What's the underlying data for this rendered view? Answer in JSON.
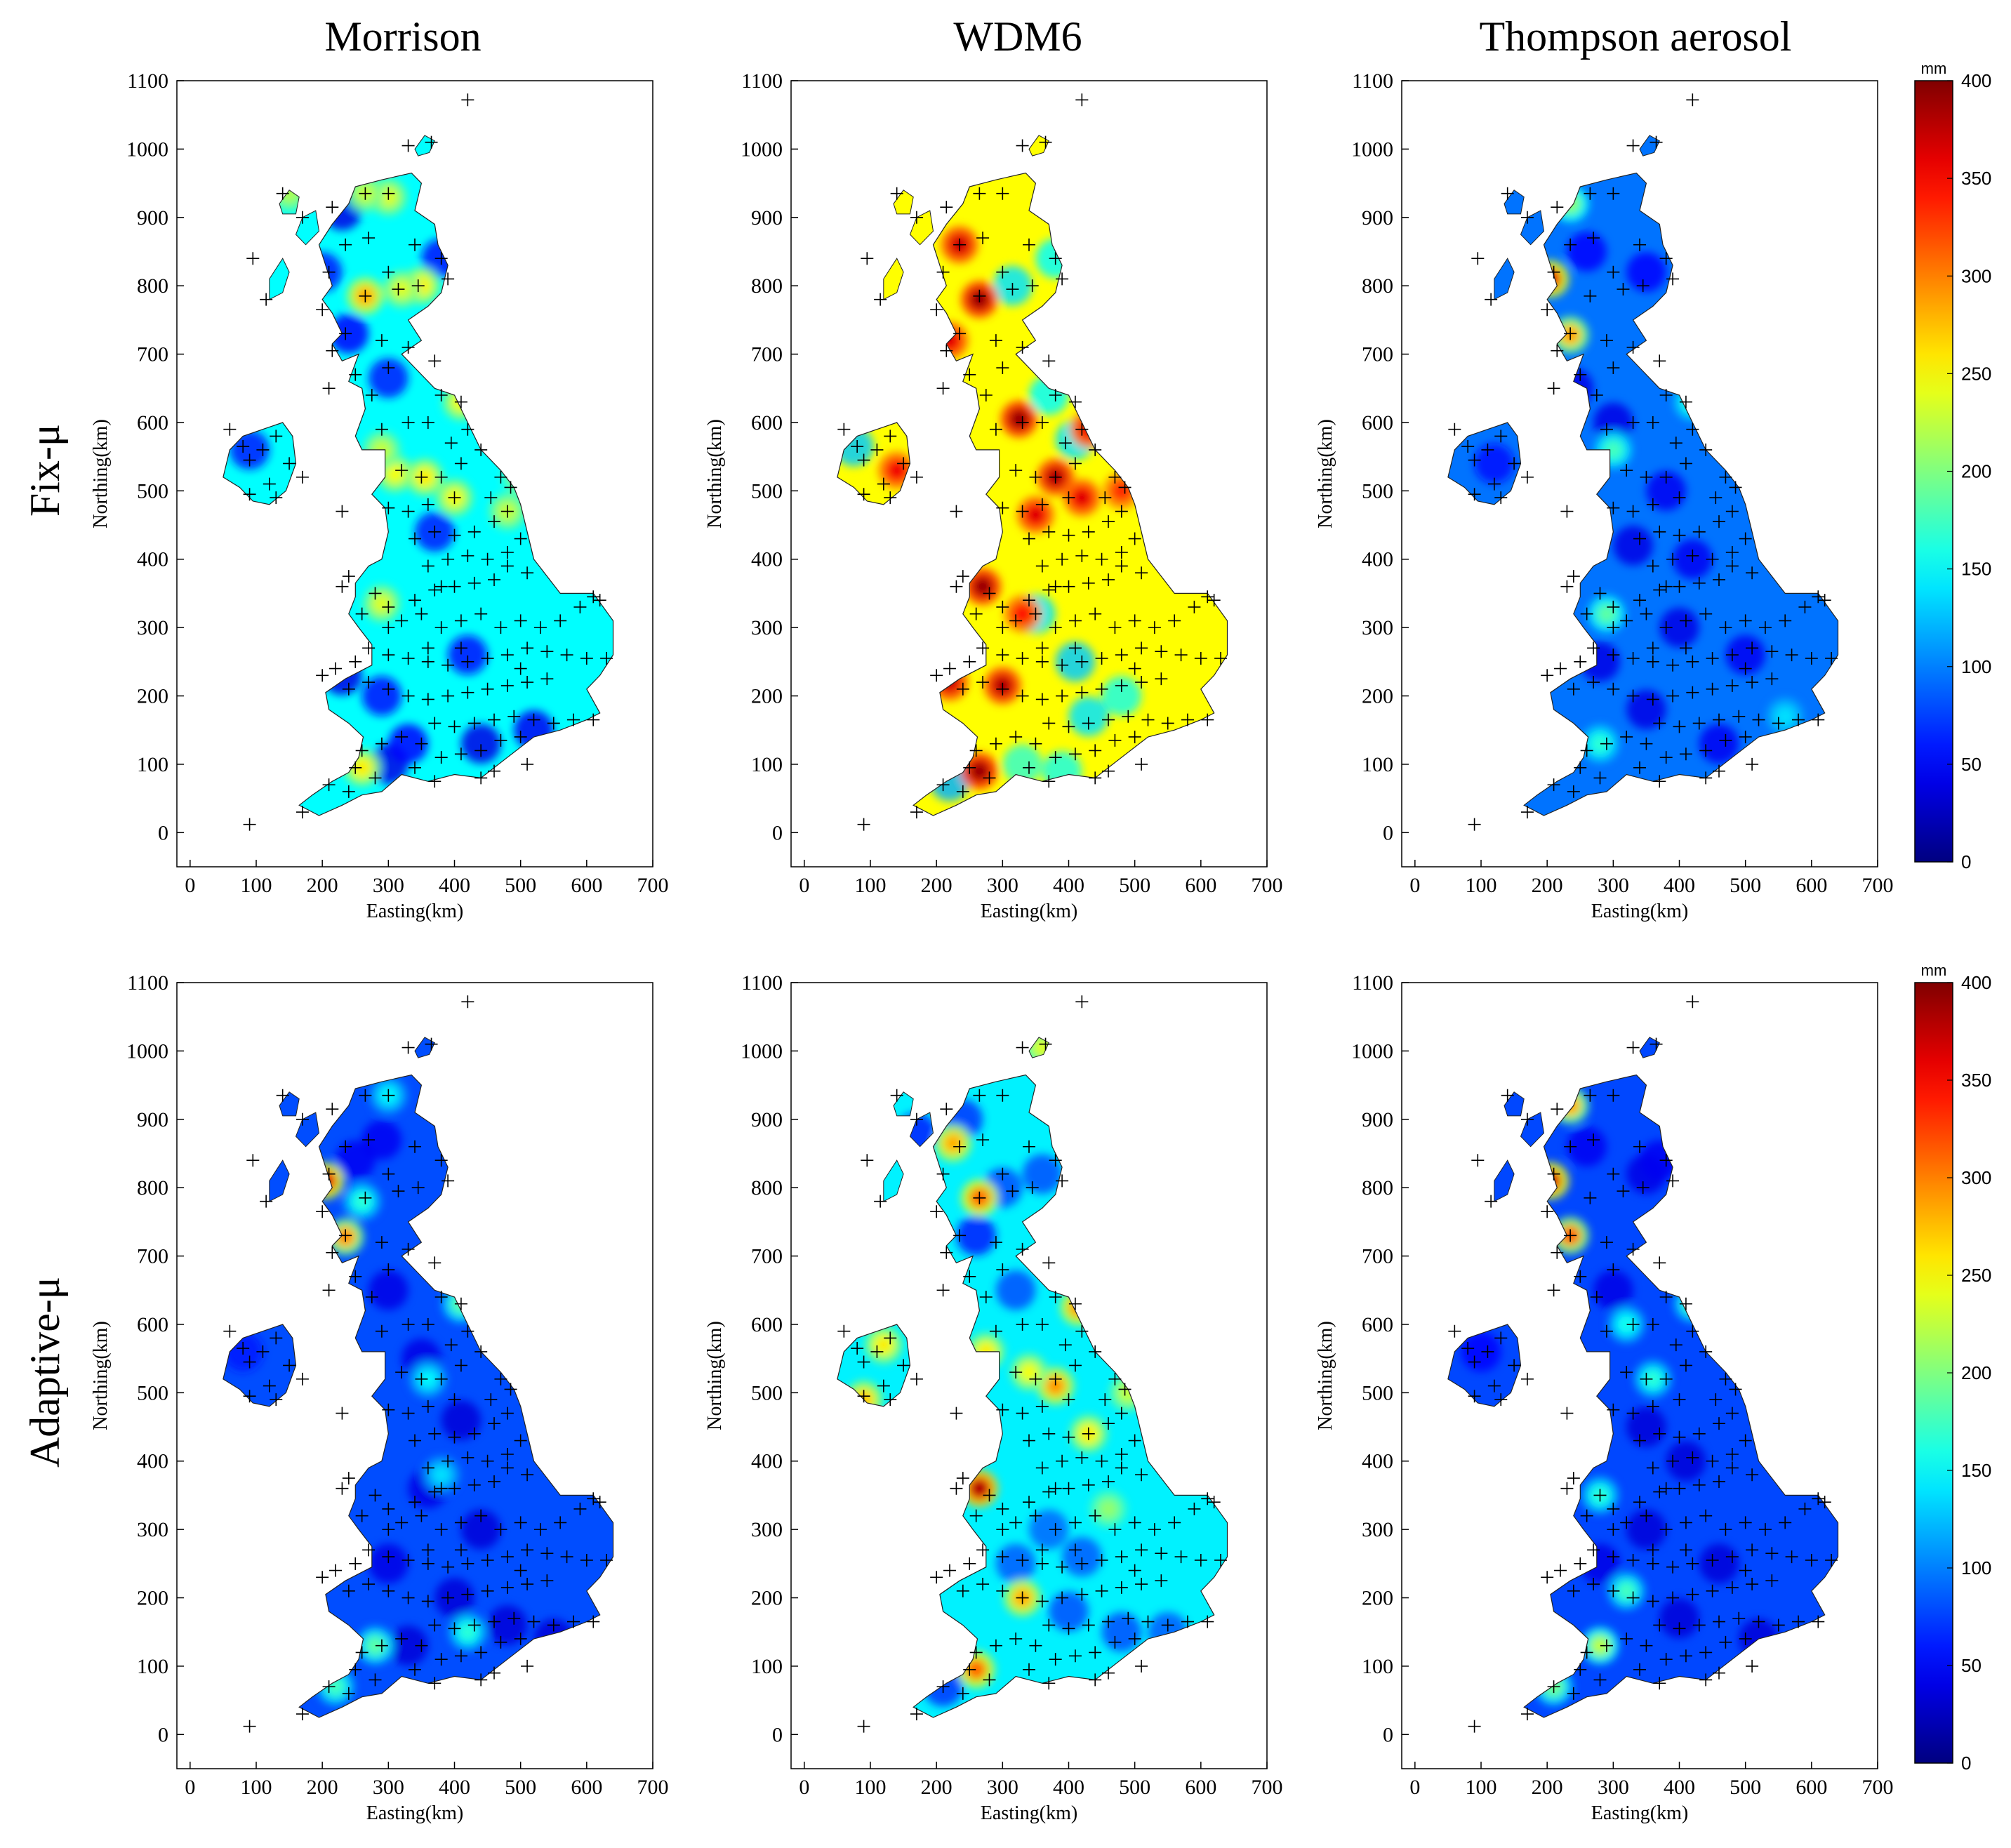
{
  "figure": {
    "column_titles": [
      "Morrison",
      "WDM6",
      "Thompson aerosol"
    ],
    "row_titles": [
      "Fix-μ",
      "Adaptive-μ"
    ]
  },
  "axes": {
    "xlabel": "Easting(km)",
    "ylabel": "Northing(km)",
    "x_ticks": [
      0,
      100,
      200,
      300,
      400,
      500,
      600,
      700
    ],
    "y_ticks": [
      0,
      100,
      200,
      300,
      400,
      500,
      600,
      700,
      800,
      900,
      1000,
      1100
    ],
    "xlim": [
      -20,
      700
    ],
    "ylim": [
      -50,
      1100
    ]
  },
  "colorbar": {
    "unit": "mm",
    "ticks": [
      0,
      50,
      100,
      150,
      200,
      250,
      300,
      350,
      400
    ],
    "range": [
      0,
      400
    ],
    "colormap": "jet",
    "colors": [
      "#00008f",
      "#0000ff",
      "#007fff",
      "#00ffff",
      "#7fff7f",
      "#ffff00",
      "#ff7f00",
      "#ff0000",
      "#7f0000"
    ]
  },
  "stations": [
    [
      90,
      12
    ],
    [
      420,
      1072
    ],
    [
      365,
      1010
    ],
    [
      330,
      1005
    ],
    [
      300,
      935
    ],
    [
      265,
      935
    ],
    [
      215,
      915
    ],
    [
      170,
      900
    ],
    [
      140,
      935
    ],
    [
      95,
      840
    ],
    [
      115,
      780
    ],
    [
      340,
      860
    ],
    [
      270,
      870
    ],
    [
      235,
      860
    ],
    [
      210,
      820
    ],
    [
      300,
      820
    ],
    [
      380,
      840
    ],
    [
      390,
      810
    ],
    [
      345,
      800
    ],
    [
      315,
      795
    ],
    [
      265,
      785
    ],
    [
      235,
      730
    ],
    [
      200,
      765
    ],
    [
      215,
      705
    ],
    [
      290,
      720
    ],
    [
      330,
      710
    ],
    [
      370,
      690
    ],
    [
      300,
      680
    ],
    [
      250,
      670
    ],
    [
      275,
      640
    ],
    [
      210,
      650
    ],
    [
      380,
      640
    ],
    [
      410,
      630
    ],
    [
      330,
      600
    ],
    [
      290,
      590
    ],
    [
      360,
      600
    ],
    [
      395,
      570
    ],
    [
      420,
      590
    ],
    [
      440,
      560
    ],
    [
      410,
      540
    ],
    [
      380,
      520
    ],
    [
      350,
      520
    ],
    [
      320,
      530
    ],
    [
      470,
      520
    ],
    [
      485,
      505
    ],
    [
      455,
      490
    ],
    [
      400,
      490
    ],
    [
      360,
      480
    ],
    [
      330,
      470
    ],
    [
      300,
      475
    ],
    [
      480,
      470
    ],
    [
      460,
      455
    ],
    [
      430,
      440
    ],
    [
      400,
      435
    ],
    [
      370,
      440
    ],
    [
      340,
      430
    ],
    [
      500,
      430
    ],
    [
      480,
      410
    ],
    [
      450,
      400
    ],
    [
      420,
      405
    ],
    [
      390,
      400
    ],
    [
      360,
      390
    ],
    [
      480,
      390
    ],
    [
      510,
      380
    ],
    [
      460,
      370
    ],
    [
      430,
      365
    ],
    [
      400,
      360
    ],
    [
      370,
      355
    ],
    [
      340,
      340
    ],
    [
      300,
      330
    ],
    [
      280,
      350
    ],
    [
      240,
      375
    ],
    [
      230,
      360
    ],
    [
      260,
      320
    ],
    [
      300,
      300
    ],
    [
      320,
      310
    ],
    [
      350,
      320
    ],
    [
      380,
      300
    ],
    [
      410,
      310
    ],
    [
      440,
      320
    ],
    [
      470,
      300
    ],
    [
      500,
      310
    ],
    [
      530,
      300
    ],
    [
      560,
      310
    ],
    [
      590,
      330
    ],
    [
      610,
      345
    ],
    [
      620,
      340
    ],
    [
      570,
      260
    ],
    [
      540,
      265
    ],
    [
      510,
      270
    ],
    [
      480,
      260
    ],
    [
      450,
      255
    ],
    [
      420,
      250
    ],
    [
      390,
      245
    ],
    [
      360,
      250
    ],
    [
      330,
      255
    ],
    [
      300,
      260
    ],
    [
      270,
      270
    ],
    [
      250,
      250
    ],
    [
      220,
      240
    ],
    [
      200,
      230
    ],
    [
      240,
      210
    ],
    [
      270,
      220
    ],
    [
      300,
      210
    ],
    [
      330,
      200
    ],
    [
      360,
      195
    ],
    [
      390,
      200
    ],
    [
      420,
      205
    ],
    [
      450,
      210
    ],
    [
      480,
      215
    ],
    [
      510,
      220
    ],
    [
      540,
      225
    ],
    [
      600,
      255
    ],
    [
      630,
      255
    ],
    [
      370,
      160
    ],
    [
      400,
      155
    ],
    [
      430,
      160
    ],
    [
      460,
      165
    ],
    [
      490,
      170
    ],
    [
      520,
      165
    ],
    [
      550,
      160
    ],
    [
      580,
      165
    ],
    [
      610,
      165
    ],
    [
      500,
      140
    ],
    [
      470,
      135
    ],
    [
      440,
      120
    ],
    [
      410,
      115
    ],
    [
      380,
      110
    ],
    [
      350,
      130
    ],
    [
      320,
      140
    ],
    [
      290,
      130
    ],
    [
      260,
      120
    ],
    [
      250,
      95
    ],
    [
      280,
      80
    ],
    [
      340,
      95
    ],
    [
      440,
      80
    ],
    [
      460,
      90
    ],
    [
      510,
      100
    ],
    [
      370,
      75
    ],
    [
      210,
      70
    ],
    [
      240,
      60
    ],
    [
      170,
      30
    ],
    [
      60,
      590
    ],
    [
      80,
      565
    ],
    [
      90,
      545
    ],
    [
      110,
      560
    ],
    [
      130,
      580
    ],
    [
      120,
      510
    ],
    [
      90,
      495
    ],
    [
      130,
      490
    ],
    [
      150,
      540
    ],
    [
      170,
      520
    ],
    [
      230,
      470
    ],
    [
      380,
      360
    ],
    [
      500,
      240
    ],
    [
      410,
      270
    ],
    [
      360,
      270
    ]
  ],
  "panels": [
    {
      "name": "Morrison / Fix-μ",
      "base": 150,
      "hot": [
        [
          265,
          785,
          290
        ],
        [
          300,
          930,
          240
        ],
        [
          265,
          935,
          230
        ],
        [
          350,
          800,
          260
        ],
        [
          320,
          795,
          240
        ],
        [
          410,
          630,
          250
        ],
        [
          355,
          520,
          260
        ],
        [
          310,
          525,
          250
        ],
        [
          400,
          490,
          250
        ],
        [
          480,
          470,
          230
        ],
        [
          290,
          335,
          240
        ],
        [
          260,
          95,
          260
        ],
        [
          150,
          935,
          220
        ],
        [
          290,
          560,
          230
        ],
        [
          500,
          520,
          210
        ]
      ],
      "cold": [
        [
          240,
          730,
          50
        ],
        [
          230,
          910,
          40
        ],
        [
          300,
          665,
          60
        ],
        [
          230,
          230,
          40
        ],
        [
          300,
          100,
          40
        ],
        [
          370,
          440,
          60
        ],
        [
          420,
          260,
          55
        ],
        [
          440,
          130,
          40
        ],
        [
          520,
          150,
          45
        ],
        [
          330,
          130,
          50
        ],
        [
          90,
          560,
          60
        ],
        [
          200,
          820,
          60
        ],
        [
          380,
          840,
          55
        ],
        [
          290,
          200,
          55
        ],
        [
          560,
          110,
          50
        ]
      ]
    },
    {
      "name": "WDM6 / Fix-μ",
      "base": 250,
      "hot": [
        [
          265,
          780,
          400
        ],
        [
          235,
          860,
          380
        ],
        [
          325,
          605,
          400
        ],
        [
          380,
          520,
          390
        ],
        [
          270,
          360,
          400
        ],
        [
          300,
          215,
          390
        ],
        [
          265,
          90,
          400
        ],
        [
          420,
          490,
          370
        ],
        [
          430,
          590,
          360
        ],
        [
          220,
          720,
          370
        ],
        [
          140,
          530,
          360
        ],
        [
          350,
          465,
          370
        ],
        [
          480,
          500,
          340
        ],
        [
          220,
          220,
          380
        ],
        [
          330,
          320,
          350
        ]
      ],
      "cold": [
        [
          75,
          565,
          130
        ],
        [
          315,
          800,
          140
        ],
        [
          380,
          840,
          150
        ],
        [
          410,
          575,
          140
        ],
        [
          370,
          640,
          150
        ],
        [
          350,
          320,
          140
        ],
        [
          410,
          250,
          130
        ],
        [
          430,
          170,
          140
        ],
        [
          390,
          90,
          160
        ],
        [
          330,
          100,
          170
        ],
        [
          220,
          75,
          120
        ],
        [
          480,
          200,
          160
        ],
        [
          240,
          420,
          160
        ]
      ]
    },
    {
      "name": "Thompson aerosol / Fix-μ",
      "base": 95,
      "hot": [
        [
          205,
          810,
          380
        ],
        [
          235,
          728,
          300
        ],
        [
          235,
          920,
          210
        ],
        [
          290,
          320,
          190
        ],
        [
          420,
          630,
          170
        ],
        [
          300,
          560,
          180
        ],
        [
          560,
          170,
          140
        ],
        [
          280,
          130,
          170
        ]
      ],
      "cold": [
        [
          240,
          650,
          40
        ],
        [
          300,
          600,
          40
        ],
        [
          380,
          500,
          45
        ],
        [
          330,
          420,
          40
        ],
        [
          420,
          400,
          45
        ],
        [
          280,
          250,
          40
        ],
        [
          350,
          180,
          40
        ],
        [
          460,
          130,
          45
        ],
        [
          400,
          300,
          40
        ],
        [
          500,
          260,
          45
        ],
        [
          120,
          540,
          55
        ],
        [
          260,
          850,
          50
        ],
        [
          350,
          820,
          50
        ]
      ]
    },
    {
      "name": "Morrison / Adaptive-μ",
      "base": 80,
      "hot": [
        [
          205,
          810,
          390
        ],
        [
          235,
          728,
          310
        ],
        [
          410,
          630,
          190
        ],
        [
          260,
          780,
          170
        ],
        [
          420,
          150,
          170
        ],
        [
          280,
          130,
          190
        ],
        [
          220,
          70,
          180
        ],
        [
          380,
          380,
          140
        ],
        [
          360,
          520,
          150
        ],
        [
          300,
          935,
          150
        ]
      ],
      "cold": [
        [
          300,
          650,
          40
        ],
        [
          350,
          550,
          40
        ],
        [
          410,
          460,
          35
        ],
        [
          360,
          360,
          40
        ],
        [
          440,
          300,
          35
        ],
        [
          400,
          200,
          35
        ],
        [
          480,
          160,
          35
        ],
        [
          550,
          140,
          35
        ],
        [
          300,
          250,
          40
        ],
        [
          250,
          840,
          45
        ],
        [
          290,
          870,
          45
        ],
        [
          80,
          560,
          60
        ],
        [
          330,
          130,
          35
        ]
      ]
    },
    {
      "name": "WDM6 / Adaptive-μ",
      "base": 145,
      "hot": [
        [
          265,
          785,
          320
        ],
        [
          225,
          865,
          290
        ],
        [
          265,
          360,
          400
        ],
        [
          415,
          625,
          300
        ],
        [
          380,
          510,
          300
        ],
        [
          330,
          200,
          290
        ],
        [
          260,
          95,
          320
        ],
        [
          90,
          490,
          280
        ],
        [
          120,
          570,
          260
        ],
        [
          360,
          1005,
          240
        ],
        [
          430,
          440,
          260
        ],
        [
          275,
          560,
          260
        ],
        [
          340,
          530,
          250
        ],
        [
          490,
          500,
          230
        ],
        [
          460,
          330,
          210
        ]
      ],
      "cold": [
        [
          260,
          730,
          60
        ],
        [
          240,
          900,
          70
        ],
        [
          320,
          650,
          80
        ],
        [
          360,
          820,
          80
        ],
        [
          300,
          800,
          80
        ],
        [
          170,
          880,
          60
        ],
        [
          370,
          300,
          90
        ],
        [
          420,
          260,
          85
        ],
        [
          480,
          150,
          80
        ],
        [
          400,
          180,
          80
        ],
        [
          550,
          150,
          85
        ],
        [
          320,
          250,
          85
        ],
        [
          210,
          70,
          70
        ]
      ]
    },
    {
      "name": "Thompson aerosol / Adaptive-μ",
      "base": 78,
      "hot": [
        [
          205,
          810,
          400
        ],
        [
          235,
          730,
          330
        ],
        [
          235,
          920,
          300
        ],
        [
          420,
          630,
          180
        ],
        [
          320,
          210,
          180
        ],
        [
          280,
          130,
          230
        ],
        [
          280,
          350,
          170
        ],
        [
          210,
          70,
          200
        ],
        [
          360,
          520,
          170
        ],
        [
          320,
          600,
          160
        ]
      ],
      "cold": [
        [
          300,
          650,
          40
        ],
        [
          350,
          450,
          35
        ],
        [
          410,
          400,
          35
        ],
        [
          350,
          300,
          35
        ],
        [
          460,
          250,
          35
        ],
        [
          400,
          170,
          35
        ],
        [
          520,
          140,
          35
        ],
        [
          280,
          250,
          40
        ],
        [
          260,
          860,
          45
        ],
        [
          350,
          820,
          40
        ],
        [
          100,
          560,
          50
        ],
        [
          370,
          840,
          45
        ]
      ]
    }
  ]
}
